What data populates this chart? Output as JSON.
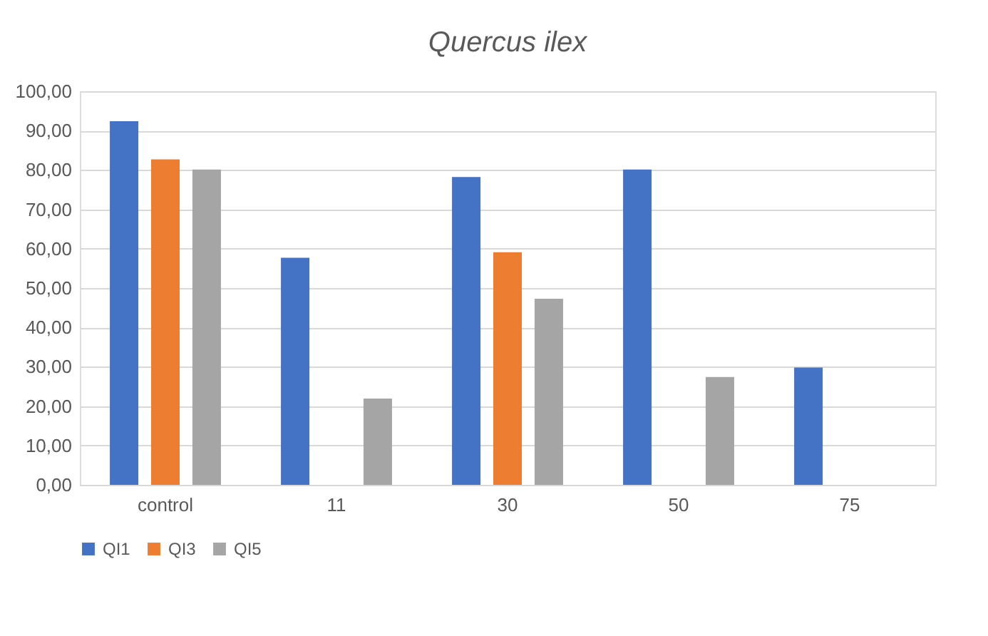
{
  "chart_data": {
    "type": "bar",
    "title": "Quercus ilex",
    "categories": [
      "control",
      "11",
      "30",
      "50",
      "75"
    ],
    "series": [
      {
        "name": "QI1",
        "color": "#4472c4",
        "values": [
          92.4,
          57.7,
          78.2,
          80.1,
          29.8
        ]
      },
      {
        "name": "QI3",
        "color": "#ed7d31",
        "values": [
          82.7,
          null,
          59.1,
          null,
          null
        ]
      },
      {
        "name": "QI5",
        "color": "#a5a5a5",
        "values": [
          80.1,
          21.9,
          47.3,
          27.4,
          null
        ]
      }
    ],
    "ylim": [
      0,
      100
    ],
    "yticks": [
      {
        "value": 0,
        "label": "0,00"
      },
      {
        "value": 10,
        "label": "10,00"
      },
      {
        "value": 20,
        "label": "20,00"
      },
      {
        "value": 30,
        "label": "30,00"
      },
      {
        "value": 40,
        "label": "40,00"
      },
      {
        "value": 50,
        "label": "50,00"
      },
      {
        "value": 60,
        "label": "60,00"
      },
      {
        "value": 70,
        "label": "70,00"
      },
      {
        "value": 80,
        "label": "80,00"
      },
      {
        "value": 90,
        "label": "90,00"
      },
      {
        "value": 100,
        "label": "100,00"
      }
    ],
    "grid": "y",
    "legend": "bottom"
  }
}
